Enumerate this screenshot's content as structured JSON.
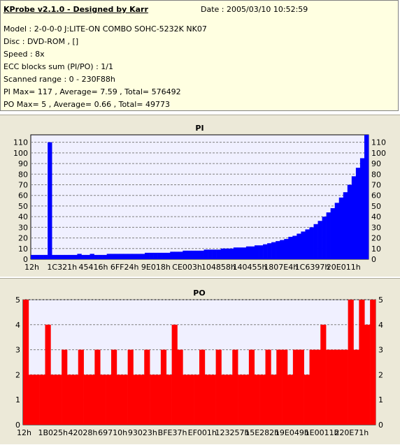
{
  "header": {
    "title": "KProbe v2.1.0 - Designed by Karr",
    "date": "Date : 2005/03/10 10:52:59"
  },
  "info_lines": [
    "Model : 2-0-0-0 J:LITE-ON COMBO SOHC-5232K NK07",
    "Disc : DVD-ROM ,  []",
    "Speed : 8x",
    "ECC blocks sum (PI/PO) : 1/1",
    "Scanned range : 0 - 230F88h",
    "PI Max= 117 , Average= 7.59 , Total= 576492",
    "PO Max= 5 , Average= 0.66 , Total= 49773"
  ],
  "colors": {
    "pi": "#0000ff",
    "po": "#ff0000",
    "plot_bg": "#f0f0ff",
    "panel_bg": "#ece9d8",
    "info_bg": "#ffffe1"
  },
  "chart_data": [
    {
      "type": "bar",
      "title": "PI",
      "ylim": [
        0,
        117
      ],
      "yticks": [
        0,
        10,
        20,
        30,
        40,
        50,
        60,
        70,
        80,
        90,
        100,
        110
      ],
      "xticks": [
        "12h",
        "1C321h",
        "45416h",
        "6FF24h",
        "9E018h",
        "CE003h",
        "104858h",
        "140455h",
        "1807E4h",
        "1C6397h",
        "20E011h"
      ],
      "series": [
        {
          "values": [
            4,
            4,
            4,
            4,
            110,
            4,
            4,
            4,
            4,
            4,
            4,
            5,
            4,
            4,
            5,
            4,
            4,
            4,
            5,
            5,
            5,
            5,
            5,
            5,
            5,
            5,
            5,
            6,
            6,
            6,
            6,
            6,
            6,
            7,
            7,
            7,
            8,
            8,
            8,
            8,
            8,
            9,
            9,
            9,
            9,
            10,
            10,
            10,
            11,
            11,
            11,
            12,
            12,
            13,
            13,
            14,
            15,
            16,
            17,
            18,
            19,
            21,
            22,
            24,
            26,
            28,
            30,
            33,
            36,
            40,
            44,
            48,
            53,
            58,
            63,
            70,
            78,
            86,
            95,
            117
          ]
        }
      ]
    },
    {
      "type": "bar",
      "title": "PO",
      "ylim": [
        0,
        5
      ],
      "yticks": [
        0,
        1,
        2,
        3,
        4,
        5
      ],
      "xticks": [
        "12h",
        "1B025h",
        "42028h",
        "69710h",
        "93023h",
        "BFE37h",
        "EF001h",
        "123257h",
        "15E282h",
        "19E049h",
        "1E0011h",
        "220E71h"
      ],
      "series": [
        {
          "values": [
            5,
            2,
            2,
            2,
            4,
            2,
            2,
            3,
            2,
            2,
            3,
            2,
            2,
            3,
            2,
            2,
            3,
            2,
            2,
            3,
            2,
            2,
            3,
            2,
            2,
            3,
            2,
            4,
            3,
            2,
            2,
            2,
            3,
            2,
            2,
            3,
            2,
            2,
            3,
            2,
            2,
            3,
            2,
            2,
            3,
            2,
            3,
            3,
            2,
            3,
            3,
            2,
            3,
            3,
            4,
            3,
            3,
            3,
            3,
            5,
            3,
            5,
            4,
            5
          ]
        }
      ]
    }
  ]
}
